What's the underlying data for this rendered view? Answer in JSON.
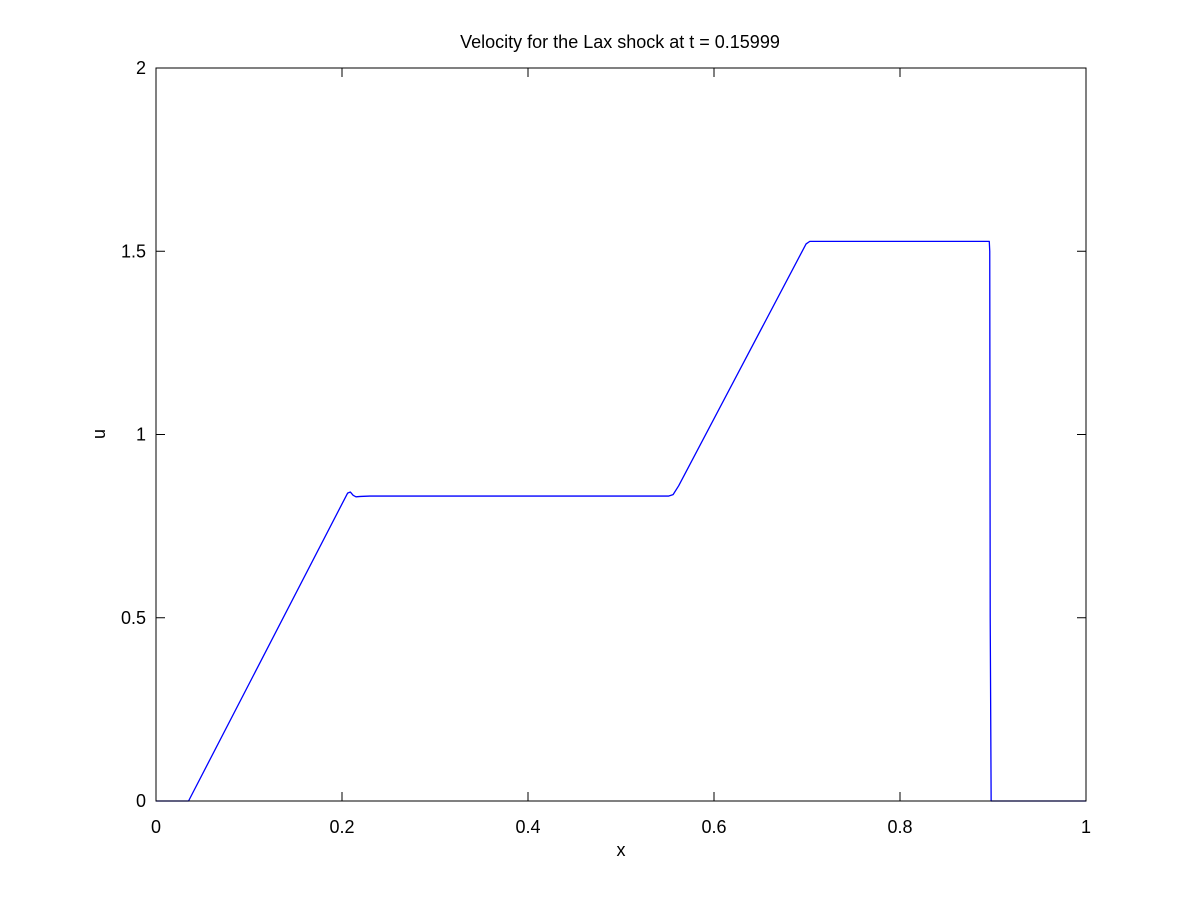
{
  "chart_data": {
    "type": "line",
    "title": "Velocity for the Lax shock at t = 0.15999",
    "xlabel": "x",
    "ylabel": "u",
    "xlim": [
      0,
      1
    ],
    "ylim": [
      0,
      2
    ],
    "xticks": [
      0,
      0.2,
      0.4,
      0.6,
      0.8,
      1
    ],
    "xtick_labels": [
      "0",
      "0.2",
      "0.4",
      "0.6",
      "0.8",
      "1"
    ],
    "yticks": [
      0,
      0.5,
      1,
      1.5,
      2
    ],
    "ytick_labels": [
      "0",
      "0.5",
      "1",
      "1.5",
      "2"
    ],
    "grid": false,
    "line_color": "#0000ff",
    "series": [
      {
        "x": [
          0.0,
          0.035,
          0.206,
          0.209,
          0.212,
          0.215,
          0.22,
          0.23,
          0.551,
          0.556,
          0.562,
          0.699,
          0.703,
          0.896,
          0.8965,
          0.897,
          0.898,
          1.0
        ],
        "y": [
          0.0,
          0.0,
          0.84,
          0.843,
          0.834,
          0.83,
          0.831,
          0.832,
          0.832,
          0.836,
          0.86,
          1.52,
          1.527,
          1.527,
          1.5,
          0.5,
          0.0,
          0.0
        ]
      }
    ]
  }
}
